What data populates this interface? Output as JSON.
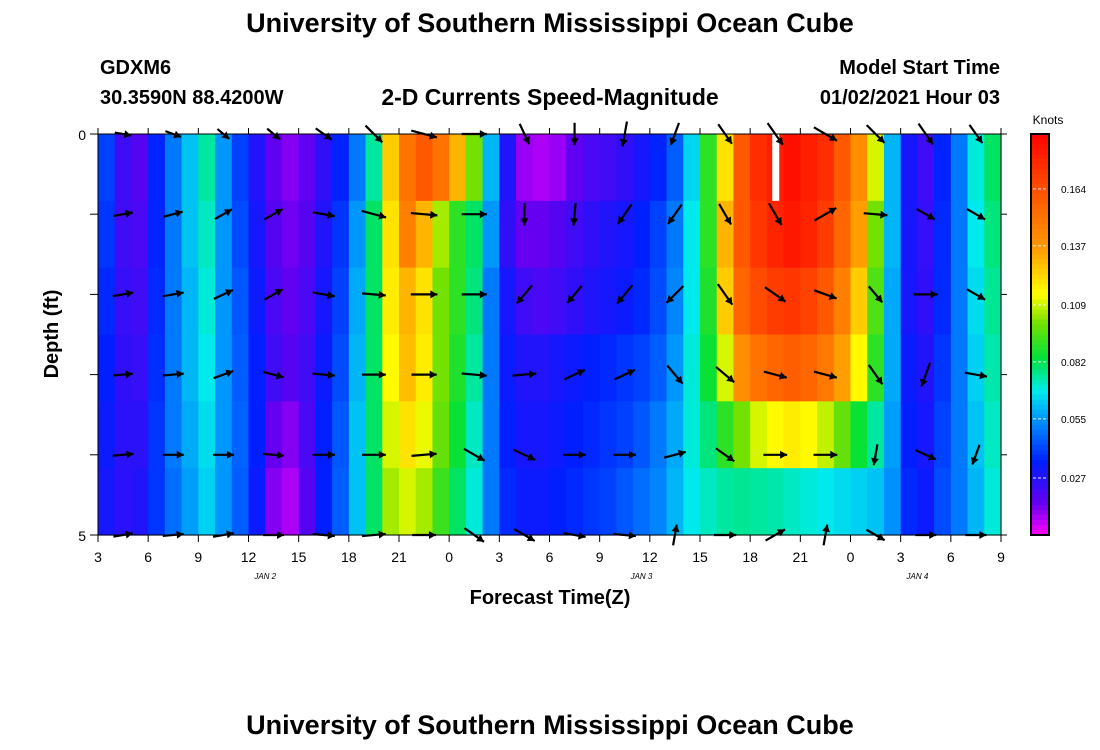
{
  "title_top": "University of Southern Mississippi Ocean Cube",
  "title_bottom": "University of Southern Mississippi Ocean Cube",
  "station": {
    "name": "GDXM6",
    "coords": "30.3590N 88.4200W"
  },
  "model": {
    "start_label": "Model Start Time",
    "start_value": "01/02/2021 Hour 03"
  },
  "colors": {
    "arrow": "#000000",
    "axis": "#000000",
    "missing": "#ffffff"
  },
  "chart_data": {
    "type": "heatmap",
    "title": "2-D Currents Speed-Magnitude",
    "xlabel": "Forecast Time(Z)",
    "ylabel": "Depth (ft)",
    "colorbar_label": "Knots",
    "x_range_hours": [
      0,
      54
    ],
    "x_ticks": [
      "3",
      "6",
      "9",
      "12",
      "15",
      "18",
      "21",
      "0",
      "3",
      "6",
      "9",
      "12",
      "15",
      "18",
      "21",
      "0",
      "3",
      "6",
      "9"
    ],
    "date_labels": [
      {
        "text": "JAN 2",
        "hour": 10
      },
      {
        "text": "JAN 3",
        "hour": 32.5
      },
      {
        "text": "JAN 4",
        "hour": 49
      }
    ],
    "y_range_ft": [
      0,
      5
    ],
    "y_tick_labels": [
      {
        "value": 0,
        "text": "0"
      },
      {
        "value": 5,
        "text": "5"
      }
    ],
    "y_minor_ticks": [
      1,
      2,
      3,
      4
    ],
    "depth_levels_ft": [
      0,
      1,
      2,
      3,
      4,
      5
    ],
    "colorbar_ticks": [
      "0.027",
      "0.055",
      "0.082",
      "0.109",
      "0.137",
      "0.164"
    ],
    "colorbar_range": [
      0.0,
      0.19
    ],
    "speed_knots": [
      [
        0.04,
        0.022,
        0.018,
        0.035,
        0.05,
        0.062,
        0.075,
        0.055,
        0.04,
        0.028,
        0.016,
        0.012,
        0.016,
        0.025,
        0.035,
        0.05,
        0.075,
        0.125,
        0.15,
        0.16,
        0.15,
        0.13,
        0.1,
        0.06,
        0.028,
        0.01,
        0.008,
        0.01,
        0.016,
        0.02,
        0.022,
        0.025,
        0.03,
        0.035,
        0.045,
        0.065,
        0.09,
        0.12,
        0.16,
        0.175,
        0.18,
        0.185,
        0.18,
        0.175,
        0.16,
        0.14,
        0.11,
        0.06,
        0.03,
        0.022,
        0.035,
        0.05,
        0.07,
        0.08
      ],
      [
        0.038,
        0.022,
        0.02,
        0.035,
        0.05,
        0.062,
        0.072,
        0.055,
        0.042,
        0.03,
        0.018,
        0.014,
        0.018,
        0.028,
        0.038,
        0.055,
        0.08,
        0.12,
        0.145,
        0.13,
        0.105,
        0.09,
        0.08,
        0.055,
        0.025,
        0.015,
        0.015,
        0.018,
        0.022,
        0.025,
        0.028,
        0.03,
        0.034,
        0.04,
        0.05,
        0.068,
        0.09,
        0.13,
        0.16,
        0.172,
        0.178,
        0.182,
        0.178,
        0.17,
        0.155,
        0.135,
        0.1,
        0.06,
        0.03,
        0.024,
        0.036,
        0.05,
        0.068,
        0.078
      ],
      [
        0.036,
        0.024,
        0.022,
        0.036,
        0.05,
        0.06,
        0.07,
        0.055,
        0.044,
        0.032,
        0.02,
        0.016,
        0.02,
        0.03,
        0.04,
        0.058,
        0.08,
        0.118,
        0.13,
        0.12,
        0.1,
        0.09,
        0.078,
        0.05,
        0.03,
        0.022,
        0.02,
        0.022,
        0.025,
        0.028,
        0.03,
        0.032,
        0.036,
        0.042,
        0.052,
        0.068,
        0.088,
        0.125,
        0.155,
        0.165,
        0.17,
        0.172,
        0.168,
        0.16,
        0.145,
        0.125,
        0.095,
        0.058,
        0.03,
        0.025,
        0.036,
        0.05,
        0.066,
        0.076
      ],
      [
        0.034,
        0.025,
        0.024,
        0.037,
        0.05,
        0.06,
        0.068,
        0.055,
        0.045,
        0.034,
        0.022,
        0.018,
        0.022,
        0.032,
        0.042,
        0.06,
        0.08,
        0.115,
        0.128,
        0.118,
        0.1,
        0.088,
        0.075,
        0.05,
        0.032,
        0.028,
        0.028,
        0.03,
        0.032,
        0.034,
        0.036,
        0.038,
        0.04,
        0.045,
        0.055,
        0.07,
        0.085,
        0.11,
        0.14,
        0.15,
        0.155,
        0.158,
        0.155,
        0.148,
        0.135,
        0.115,
        0.09,
        0.058,
        0.032,
        0.028,
        0.038,
        0.05,
        0.064,
        0.074
      ],
      [
        0.032,
        0.026,
        0.026,
        0.038,
        0.05,
        0.058,
        0.066,
        0.055,
        0.046,
        0.034,
        0.015,
        0.012,
        0.02,
        0.034,
        0.044,
        0.062,
        0.08,
        0.11,
        0.12,
        0.112,
        0.098,
        0.085,
        0.072,
        0.05,
        0.034,
        0.03,
        0.03,
        0.032,
        0.034,
        0.036,
        0.038,
        0.04,
        0.044,
        0.05,
        0.058,
        0.07,
        0.078,
        0.09,
        0.1,
        0.11,
        0.115,
        0.118,
        0.115,
        0.108,
        0.098,
        0.085,
        0.075,
        0.056,
        0.034,
        0.03,
        0.04,
        0.05,
        0.062,
        0.072
      ],
      [
        0.03,
        0.026,
        0.028,
        0.038,
        0.048,
        0.056,
        0.064,
        0.055,
        0.045,
        0.032,
        0.012,
        0.008,
        0.018,
        0.034,
        0.045,
        0.062,
        0.08,
        0.105,
        0.11,
        0.105,
        0.092,
        0.08,
        0.07,
        0.05,
        0.036,
        0.032,
        0.032,
        0.034,
        0.036,
        0.038,
        0.04,
        0.044,
        0.048,
        0.052,
        0.06,
        0.068,
        0.072,
        0.075,
        0.076,
        0.075,
        0.074,
        0.072,
        0.07,
        0.068,
        0.066,
        0.064,
        0.062,
        0.054,
        0.036,
        0.032,
        0.042,
        0.05,
        0.06,
        0.07
      ]
    ],
    "missing_cells": [
      {
        "hour": 40.5,
        "level": 0
      }
    ],
    "vectors": [
      {
        "hours": [
          1.5,
          4.5,
          7.5,
          10.5,
          13.5,
          16.5,
          19.5,
          22.5,
          25.5,
          28.5,
          31.5,
          34.5,
          37.5,
          40.5,
          43.5,
          46.5,
          49.5,
          52.5
        ],
        "dirs": [
          100,
          110,
          130,
          130,
          125,
          135,
          105,
          90,
          155,
          180,
          190,
          200,
          145,
          145,
          120,
          135,
          145,
          145
        ],
        "mags": [
          0.6,
          0.6,
          0.55,
          0.6,
          0.7,
          0.85,
          0.95,
          0.9,
          0.8,
          0.8,
          0.9,
          0.85,
          0.85,
          0.95,
          0.95,
          0.9,
          0.9,
          0.8
        ]
      },
      {
        "hours": [
          1.5,
          4.5,
          7.5,
          10.5,
          13.5,
          16.5,
          19.5,
          22.5,
          25.5,
          28.5,
          31.5,
          34.5,
          37.5,
          40.5,
          43.5,
          46.5,
          49.5,
          52.5
        ],
        "dirs": [
          80,
          75,
          60,
          60,
          100,
          105,
          95,
          90,
          180,
          185,
          215,
          215,
          150,
          150,
          60,
          95,
          120,
          120
        ],
        "mags": [
          0.7,
          0.7,
          0.7,
          0.75,
          0.8,
          0.9,
          0.95,
          0.9,
          0.8,
          0.8,
          0.85,
          0.85,
          0.85,
          0.9,
          0.9,
          0.85,
          0.75,
          0.75
        ]
      },
      {
        "hours": [
          1.5,
          4.5,
          7.5,
          10.5,
          13.5,
          16.5,
          19.5,
          22.5,
          25.5,
          28.5,
          31.5,
          34.5,
          37.5,
          40.5,
          43.5,
          46.5,
          49.5,
          52.5
        ],
        "dirs": [
          80,
          80,
          65,
          60,
          100,
          95,
          90,
          90,
          220,
          220,
          220,
          225,
          145,
          125,
          110,
          140,
          90,
          120
        ],
        "mags": [
          0.75,
          0.75,
          0.75,
          0.75,
          0.8,
          0.85,
          0.95,
          0.9,
          0.85,
          0.8,
          0.85,
          0.85,
          0.9,
          0.9,
          0.85,
          0.75,
          0.85,
          0.75
        ]
      },
      {
        "hours": [
          1.5,
          4.5,
          7.5,
          10.5,
          13.5,
          16.5,
          19.5,
          22.5,
          25.5,
          28.5,
          31.5,
          34.5,
          37.5,
          40.5,
          43.5,
          46.5,
          49.5,
          52.5
        ],
        "dirs": [
          85,
          85,
          70,
          105,
          95,
          90,
          90,
          95,
          85,
          65,
          65,
          140,
          130,
          105,
          105,
          145,
          200,
          100
        ],
        "mags": [
          0.7,
          0.75,
          0.75,
          0.75,
          0.8,
          0.85,
          0.9,
          0.9,
          0.85,
          0.8,
          0.8,
          0.85,
          0.85,
          0.85,
          0.85,
          0.85,
          0.9,
          0.8
        ]
      },
      {
        "hours": [
          1.5,
          4.5,
          7.5,
          10.5,
          13.5,
          16.5,
          19.5,
          22.5,
          25.5,
          28.5,
          31.5,
          34.5,
          37.5,
          40.5,
          43.5,
          46.5,
          49.5,
          52.5
        ],
        "dirs": [
          85,
          90,
          90,
          95,
          90,
          90,
          85,
          120,
          115,
          90,
          90,
          75,
          125,
          90,
          90,
          190,
          115,
          200
        ],
        "mags": [
          0.75,
          0.75,
          0.75,
          0.75,
          0.8,
          0.85,
          0.9,
          0.85,
          0.85,
          0.8,
          0.8,
          0.8,
          0.8,
          0.85,
          0.85,
          0.75,
          0.8,
          0.75
        ]
      },
      {
        "hours": [
          1.5,
          4.5,
          7.5,
          10.5,
          13.5,
          16.5,
          19.5,
          22.5,
          25.5,
          28.5,
          31.5,
          34.5,
          37.5,
          40.5,
          43.5,
          46.5,
          49.5,
          52.5
        ],
        "dirs": [
          80,
          85,
          80,
          90,
          95,
          85,
          90,
          125,
          120,
          100,
          95,
          10,
          90,
          60,
          10,
          120,
          90,
          90
        ],
        "mags": [
          0.7,
          0.75,
          0.75,
          0.75,
          0.8,
          0.85,
          0.85,
          0.85,
          0.85,
          0.8,
          0.8,
          0.75,
          0.8,
          0.8,
          0.75,
          0.75,
          0.75,
          0.75
        ]
      }
    ]
  }
}
